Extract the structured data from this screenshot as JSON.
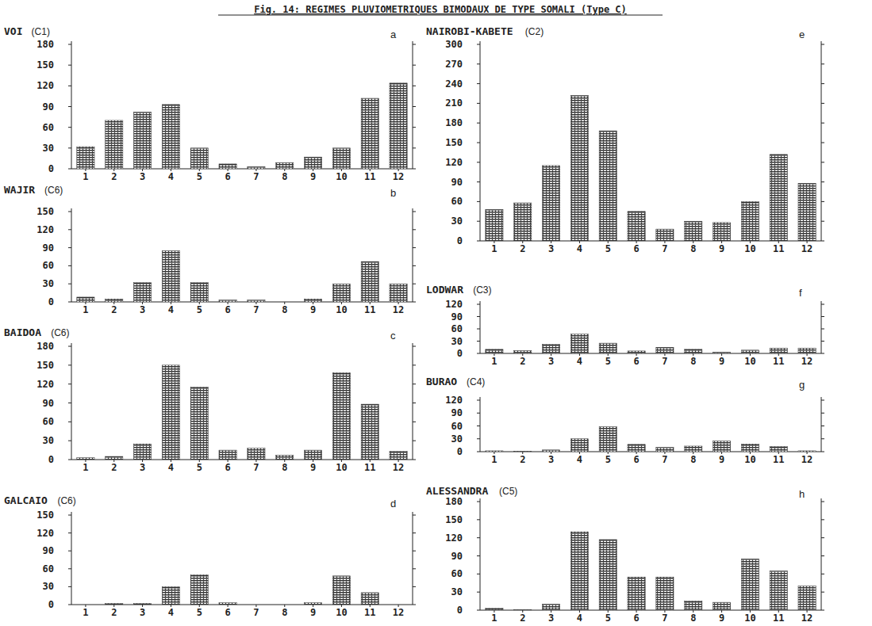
{
  "title": "Fig. 14: REGIMES PLUVIOMETRIQUES BIMODAUX DE TYPE SOMALI (Type C)",
  "chart_data": [
    {
      "type": "bar",
      "title": "VOI",
      "subtitle": "(C1)",
      "annotation": "a",
      "categories": [
        "1",
        "2",
        "3",
        "4",
        "5",
        "6",
        "7",
        "8",
        "9",
        "10",
        "11",
        "12"
      ],
      "values": [
        32,
        70,
        82,
        93,
        30,
        7,
        3,
        9,
        17,
        30,
        102,
        124
      ],
      "color": "#333333",
      "ylim": [
        0,
        180
      ],
      "yticks": [
        0,
        30,
        60,
        90,
        120,
        150,
        180
      ],
      "grid": false
    },
    {
      "type": "bar",
      "title": "WAJIR",
      "subtitle": "(C6)",
      "annotation": "b",
      "categories": [
        "1",
        "2",
        "3",
        "4",
        "5",
        "6",
        "7",
        "8",
        "9",
        "10",
        "11",
        "12"
      ],
      "values": [
        8,
        5,
        32,
        85,
        32,
        3,
        3,
        0,
        5,
        30,
        67,
        30
      ],
      "color": "#333333",
      "ylim": [
        0,
        150
      ],
      "yticks": [
        0,
        30,
        60,
        90,
        120,
        150
      ],
      "grid": false
    },
    {
      "type": "bar",
      "title": "BAIDOA",
      "subtitle": "(C6)",
      "annotation": "c",
      "categories": [
        "1",
        "2",
        "3",
        "4",
        "5",
        "6",
        "7",
        "8",
        "9",
        "10",
        "11",
        "12"
      ],
      "values": [
        3,
        5,
        25,
        150,
        115,
        15,
        18,
        7,
        15,
        138,
        88,
        13
      ],
      "color": "#333333",
      "ylim": [
        0,
        180
      ],
      "yticks": [
        0,
        30,
        60,
        90,
        120,
        150,
        180
      ],
      "grid": false
    },
    {
      "type": "bar",
      "title": "GALCAIO",
      "subtitle": "(C6)",
      "annotation": "d",
      "categories": [
        "1",
        "2",
        "3",
        "4",
        "5",
        "6",
        "7",
        "8",
        "9",
        "10",
        "11",
        "12"
      ],
      "values": [
        0,
        2,
        2,
        30,
        50,
        3,
        0,
        0,
        3,
        48,
        20,
        0
      ],
      "color": "#333333",
      "ylim": [
        0,
        150
      ],
      "yticks": [
        0,
        30,
        60,
        90,
        120,
        150
      ],
      "grid": false
    },
    {
      "type": "bar",
      "title": "NAIROBI-KABETE",
      "subtitle": "(C2)",
      "annotation": "e",
      "categories": [
        "1",
        "2",
        "3",
        "4",
        "5",
        "6",
        "7",
        "8",
        "9",
        "10",
        "11",
        "12"
      ],
      "values": [
        48,
        58,
        115,
        222,
        168,
        45,
        18,
        30,
        28,
        60,
        132,
        88
      ],
      "color": "#333333",
      "ylim": [
        0,
        300
      ],
      "yticks": [
        0,
        30,
        60,
        90,
        120,
        150,
        180,
        210,
        240,
        270,
        300
      ],
      "grid": false
    },
    {
      "type": "bar",
      "title": "LODWAR",
      "subtitle": "(C3)",
      "annotation": "f",
      "categories": [
        "1",
        "2",
        "3",
        "4",
        "5",
        "6",
        "7",
        "8",
        "9",
        "10",
        "11",
        "12"
      ],
      "values": [
        10,
        7,
        22,
        47,
        25,
        6,
        15,
        10,
        3,
        8,
        13,
        13
      ],
      "color": "#333333",
      "ylim": [
        0,
        120
      ],
      "yticks": [
        0,
        30,
        60,
        90,
        120
      ],
      "grid": false
    },
    {
      "type": "bar",
      "title": "BURAO",
      "subtitle": "(C4)",
      "annotation": "g",
      "categories": [
        "1",
        "2",
        "3",
        "4",
        "5",
        "6",
        "7",
        "8",
        "9",
        "10",
        "11",
        "12"
      ],
      "values": [
        2,
        1,
        4,
        30,
        58,
        17,
        10,
        13,
        25,
        18,
        12,
        2
      ],
      "color": "#333333",
      "ylim": [
        0,
        120
      ],
      "yticks": [
        0,
        30,
        60,
        90,
        120
      ],
      "grid": false
    },
    {
      "type": "bar",
      "title": "ALESSANDRA",
      "subtitle": "(C5)",
      "annotation": "h",
      "categories": [
        "1",
        "2",
        "3",
        "4",
        "5",
        "6",
        "7",
        "8",
        "9",
        "10",
        "11",
        "12"
      ],
      "values": [
        3,
        1,
        10,
        130,
        117,
        55,
        55,
        15,
        13,
        85,
        65,
        40
      ],
      "color": "#333333",
      "ylim": [
        0,
        180
      ],
      "yticks": [
        0,
        30,
        60,
        90,
        120,
        150,
        180
      ],
      "grid": false
    }
  ]
}
